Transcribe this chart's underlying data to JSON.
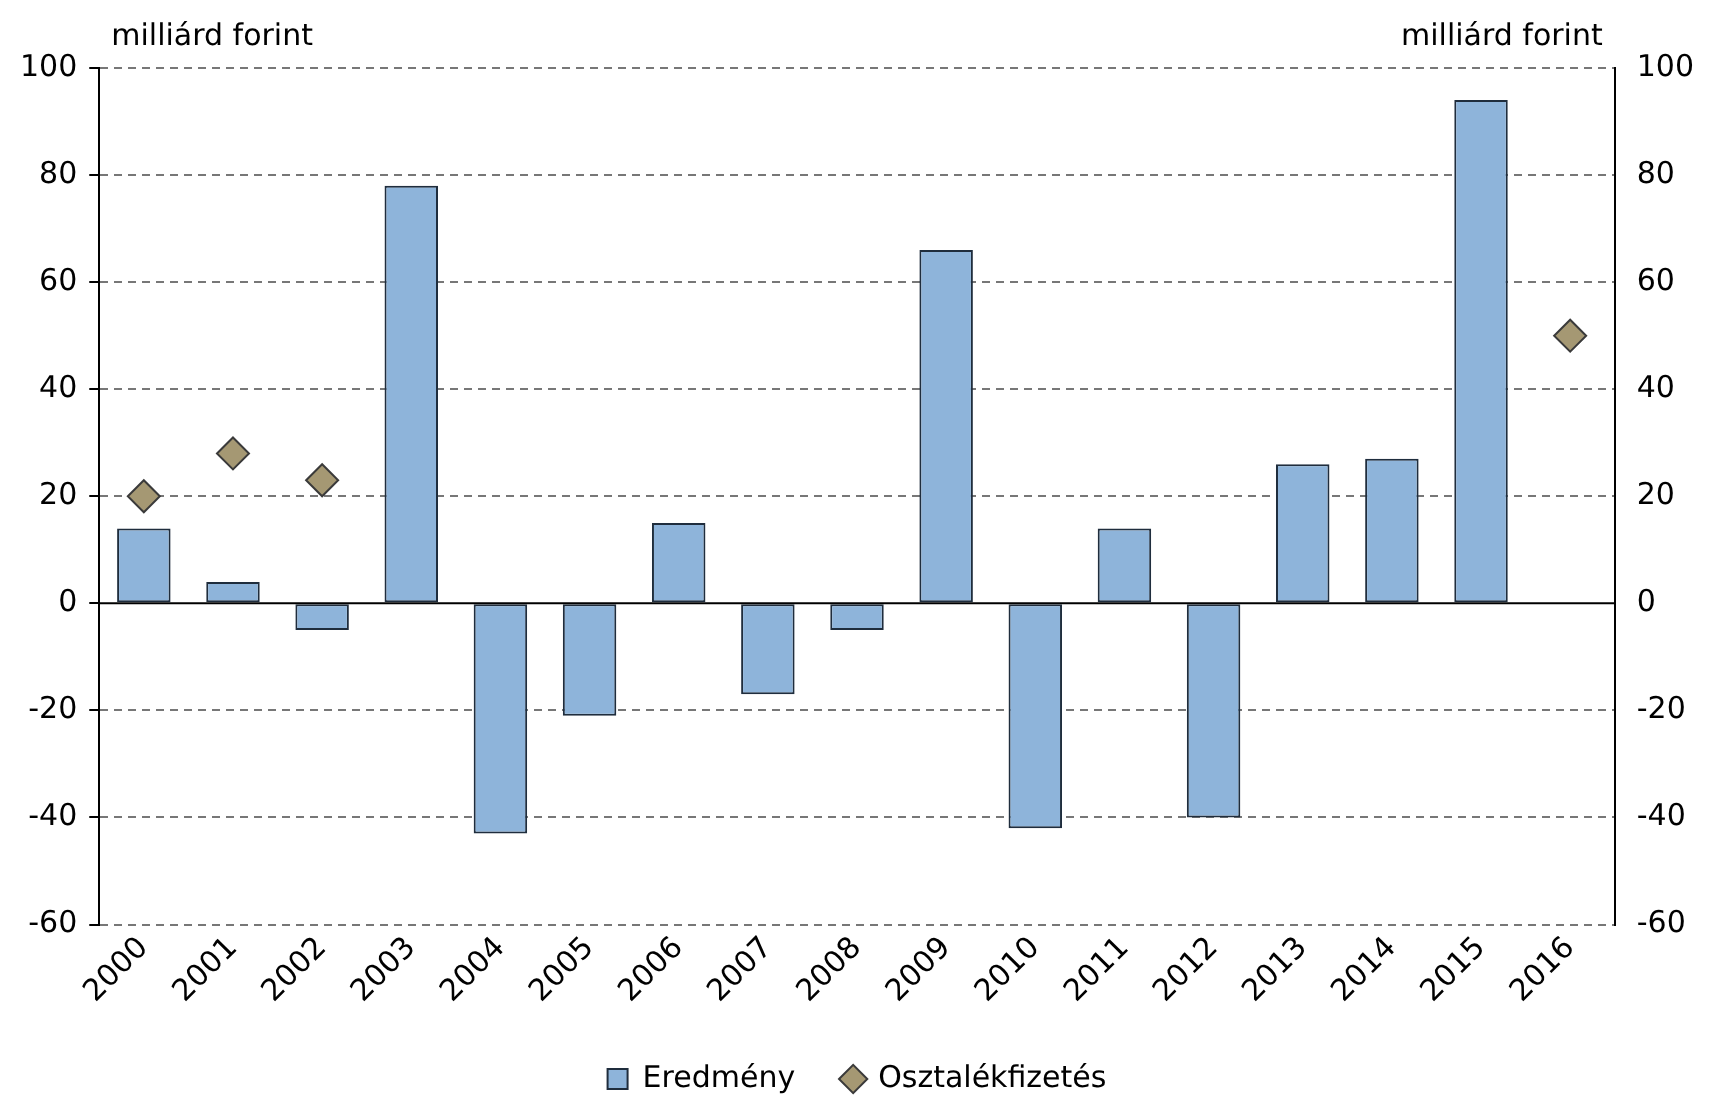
{
  "chart_data": {
    "type": "bar",
    "ylabel": "milliárd forint",
    "y2label": "milliárd forint",
    "categories": [
      "2000",
      "2001",
      "2002",
      "2003",
      "2004",
      "2005",
      "2006",
      "2007",
      "2008",
      "2009",
      "2010",
      "2011",
      "2012",
      "2013",
      "2014",
      "2015",
      "2016"
    ],
    "series": [
      {
        "name": "Eredmény",
        "color": "#8eb4da",
        "values": [
          14,
          4,
          -5,
          78,
          -43,
          -21,
          15,
          -17,
          -5,
          66,
          -42,
          14,
          -40,
          26,
          27,
          94,
          null
        ]
      },
      {
        "name": "Osztalékfizetés",
        "type": "scatter",
        "marker": "diamond",
        "color": "#a59873",
        "values": [
          20,
          28,
          23,
          null,
          null,
          null,
          null,
          null,
          null,
          null,
          null,
          null,
          null,
          null,
          null,
          null,
          50
        ]
      }
    ],
    "ylim": [
      -60,
      100
    ],
    "yticks": [
      -60,
      -40,
      -20,
      0,
      20,
      40,
      60,
      80,
      100
    ],
    "y2lim": [
      -60,
      100
    ],
    "y2ticks": [
      -60,
      -40,
      -20,
      0,
      20,
      40,
      60,
      80,
      100
    ],
    "grid": "y",
    "legend": "bottom"
  }
}
